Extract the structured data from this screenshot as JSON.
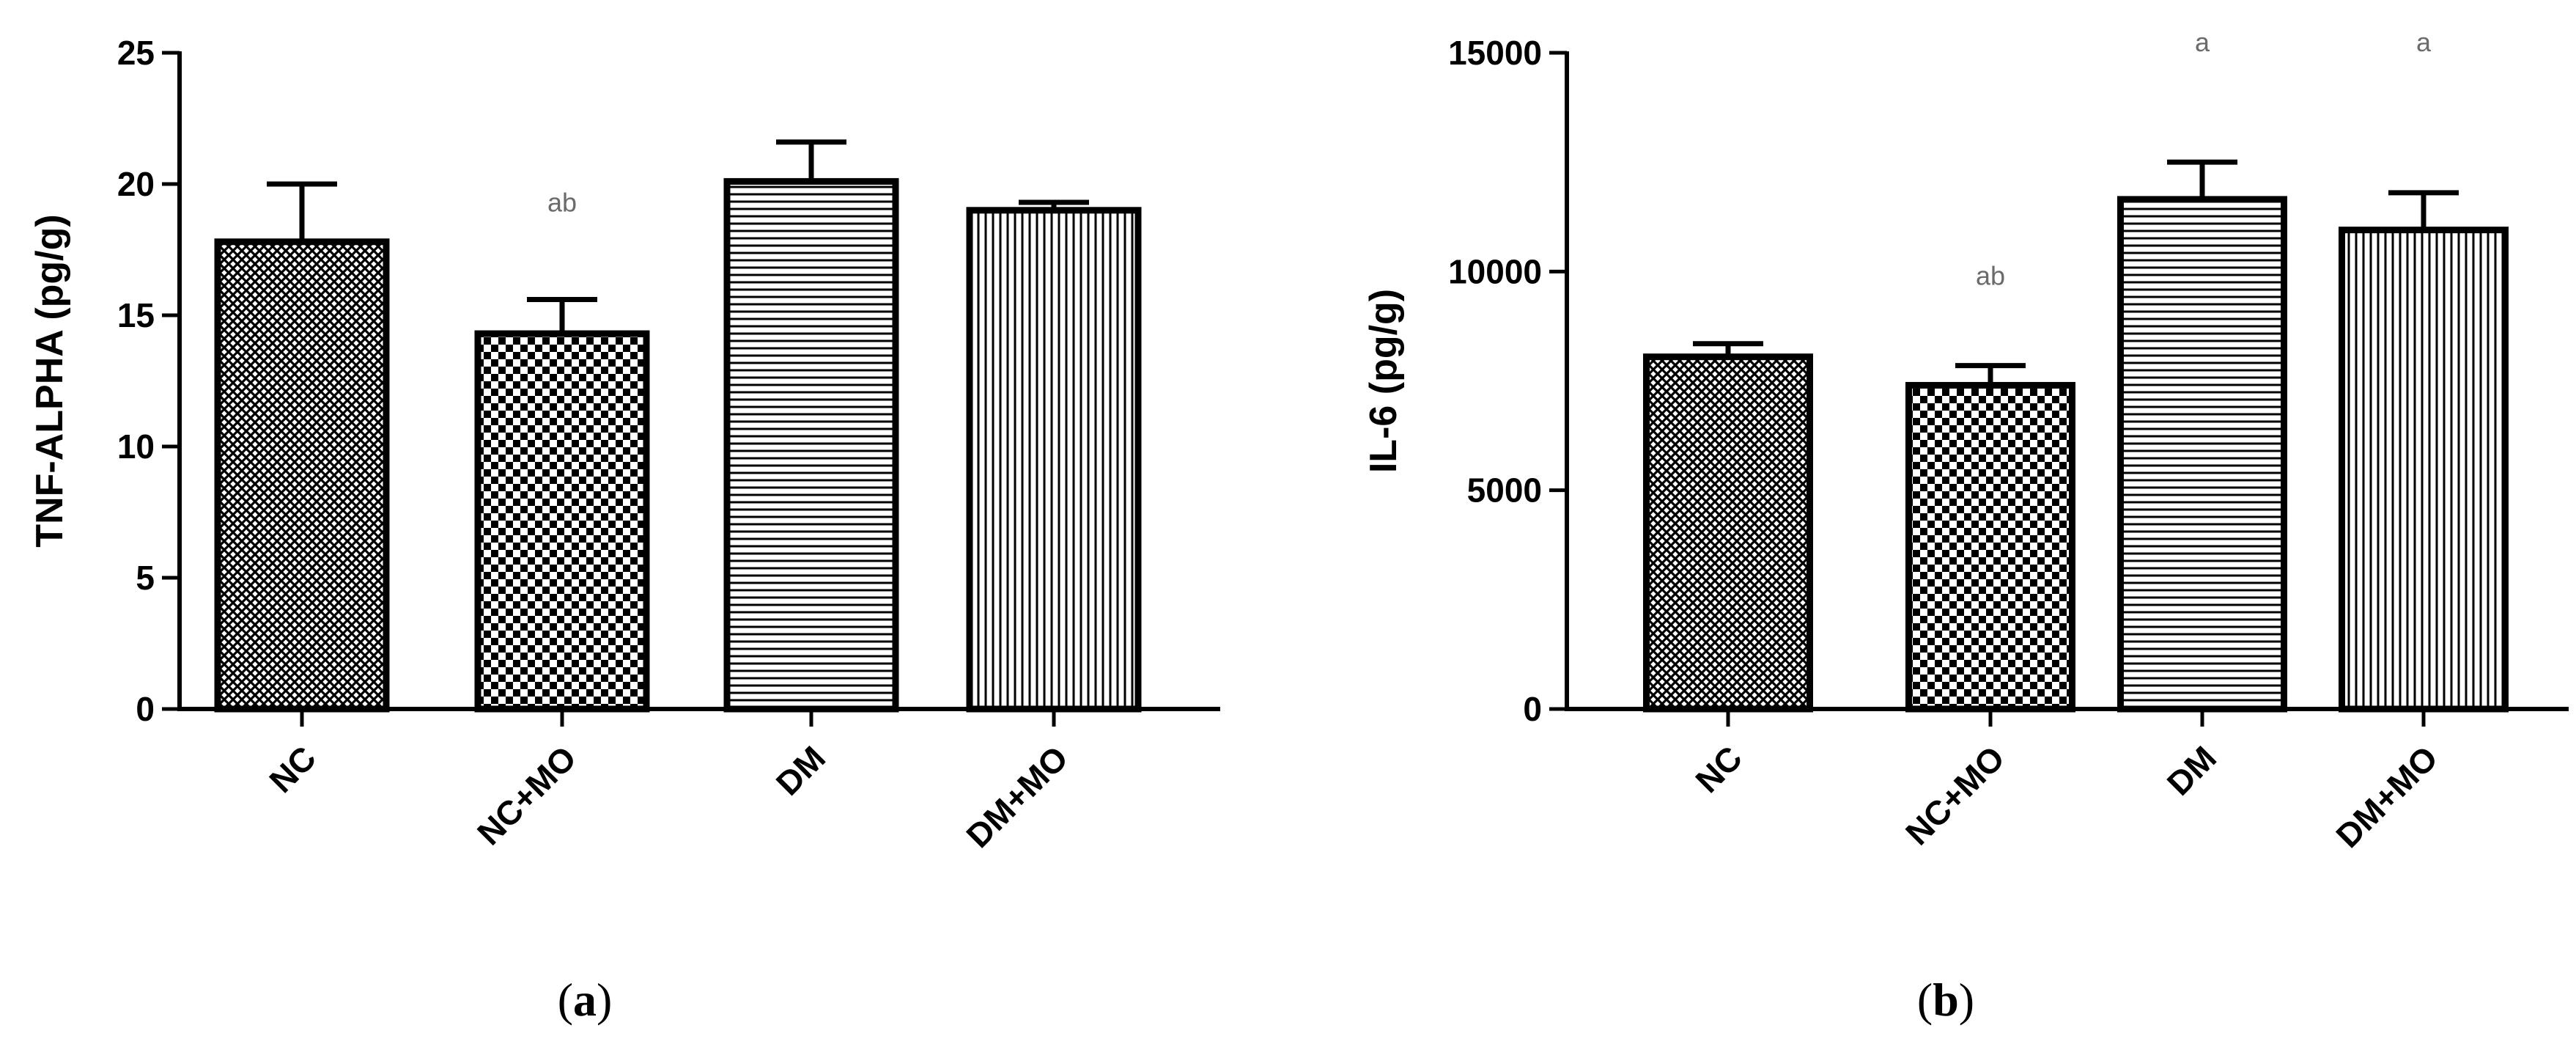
{
  "chart_data": [
    {
      "type": "bar",
      "categories": [
        "NC",
        "NC+MO",
        "DM",
        "DM+MO"
      ],
      "values": [
        17.8,
        14.3,
        20.1,
        19.0
      ],
      "errors": [
        2.2,
        1.3,
        1.5,
        0.3
      ],
      "annotations": [
        "",
        "ab",
        "",
        ""
      ],
      "patterns": [
        "crosshatch-dense",
        "checker",
        "horizontal",
        "vertical"
      ],
      "ylabel": "TNF-ALPHA (pg/g)",
      "ylim": [
        0,
        25
      ],
      "yticks": [
        0,
        5,
        10,
        15,
        20,
        25
      ],
      "panel_label": "a",
      "grid": false
    },
    {
      "type": "bar",
      "categories": [
        "NC",
        "NC+MO",
        "DM",
        "DM+MO"
      ],
      "values": [
        8050,
        7400,
        11650,
        10950
      ],
      "errors": [
        300,
        450,
        850,
        850
      ],
      "annotations": [
        "",
        "ab",
        "a",
        "a"
      ],
      "patterns": [
        "crosshatch-dense",
        "checker",
        "horizontal",
        "vertical"
      ],
      "ylabel": "IL-6 (pg/g)",
      "ylim": [
        0,
        15000
      ],
      "yticks": [
        0,
        5000,
        10000,
        15000
      ],
      "panel_label": "b",
      "grid": false
    }
  ],
  "colors": {
    "ink": "#000000",
    "annotation": "#6b6b6b",
    "background": "#ffffff"
  }
}
